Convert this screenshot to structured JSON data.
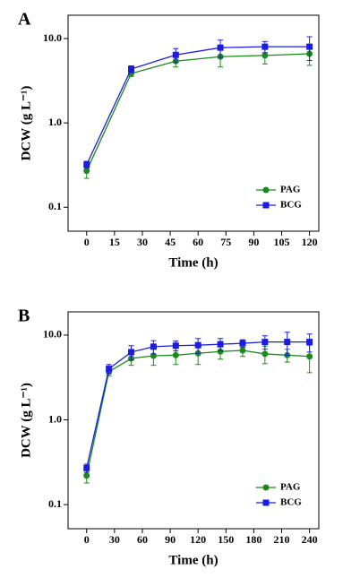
{
  "chart_data": [
    {
      "type": "line",
      "panel": "A",
      "xlabel": "Time (h)",
      "ylabel": "DCW (g L⁻¹)",
      "log_y": true,
      "legend": "lower right",
      "x": [
        0,
        24,
        48,
        72,
        96,
        120
      ],
      "xlim": [
        -10,
        125
      ],
      "xticks": [
        0,
        15,
        30,
        45,
        60,
        75,
        90,
        105,
        120
      ],
      "ylim": [
        0.052,
        18.9
      ],
      "yticks": [
        0.1,
        {
          "value": 1,
          "label": "1.0"
        },
        {
          "value": 10,
          "label": "10.0"
        }
      ],
      "series": [
        {
          "name": "PAG",
          "color": "#1a8a1a",
          "marker": "circle",
          "values": [
            0.27,
            3.85,
            5.4,
            6.1,
            6.3,
            6.6
          ],
          "errors": [
            0.05,
            0.3,
            0.8,
            1.5,
            1.3,
            1.8
          ]
        },
        {
          "name": "BCG",
          "color": "#1c1ce0",
          "marker": "square",
          "values": [
            0.32,
            4.35,
            6.4,
            7.8,
            8.0,
            8.0
          ],
          "errors": [
            0.03,
            0.4,
            1.2,
            1.8,
            1.2,
            2.5
          ]
        }
      ]
    },
    {
      "type": "line",
      "panel": "B",
      "xlabel": "Time (h)",
      "ylabel": "DCW (g L⁻¹)",
      "log_y": true,
      "legend": "lower right",
      "x": [
        0,
        24,
        48,
        72,
        96,
        120,
        144,
        168,
        192,
        216,
        240
      ],
      "xlim": [
        -20,
        250
      ],
      "xticks": [
        0,
        30,
        60,
        90,
        120,
        150,
        180,
        210,
        240
      ],
      "ylim": [
        0.052,
        18.8
      ],
      "yticks": [
        0.1,
        {
          "value": 1,
          "label": "1.0"
        },
        {
          "value": 10,
          "label": "10.0"
        }
      ],
      "series": [
        {
          "name": "PAG",
          "color": "#1a8a1a",
          "marker": "circle",
          "values": [
            0.22,
            3.7,
            5.3,
            5.7,
            5.8,
            6.1,
            6.4,
            6.6,
            6.0,
            5.8,
            5.6
          ],
          "errors": [
            0.04,
            0.4,
            0.9,
            1.3,
            1.3,
            1.6,
            1.2,
            1.0,
            1.4,
            1.0,
            2.0
          ]
        },
        {
          "name": "BCG",
          "color": "#1c1ce0",
          "marker": "square",
          "values": [
            0.27,
            4.0,
            6.3,
            7.3,
            7.5,
            7.6,
            7.8,
            8.0,
            8.3,
            8.3,
            8.3
          ],
          "errors": [
            0.03,
            0.5,
            1.2,
            1.3,
            1.0,
            1.5,
            1.3,
            0.8,
            1.5,
            2.5,
            2.0
          ]
        }
      ]
    }
  ]
}
